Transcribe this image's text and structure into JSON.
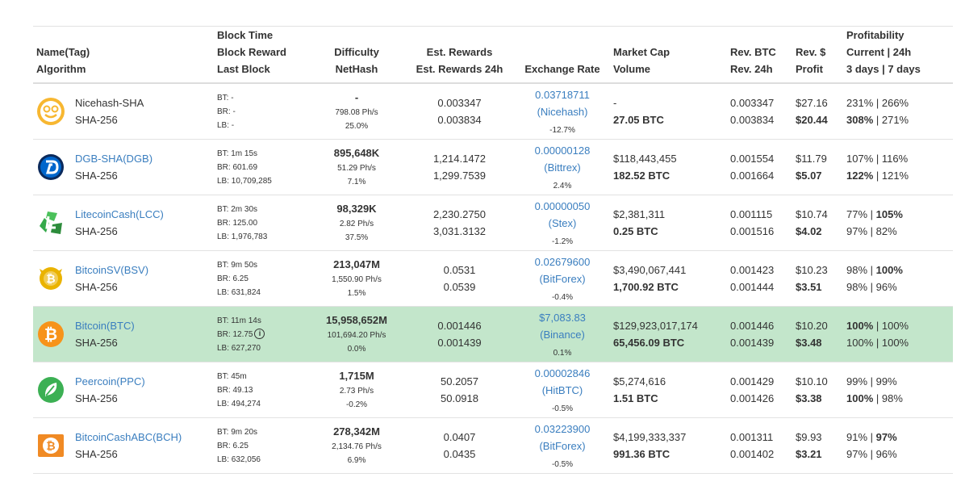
{
  "headers": {
    "name_1": "Name(Tag)",
    "name_2": "Algorithm",
    "block_1": "Block Time",
    "block_2": "Block Reward",
    "block_3": "Last Block",
    "diff_1": "Difficulty",
    "diff_2": "NetHash",
    "rew_1": "Est. Rewards",
    "rew_2": "Est. Rewards 24h",
    "ex_1": "Exchange Rate",
    "mc_1": "Market Cap",
    "mc_2": "Volume",
    "rb_1": "Rev. BTC",
    "rb_2": "Rev. 24h",
    "rd_1": "Rev. $",
    "rd_2": "Profit",
    "pr_1": "Profitability",
    "pr_2": "Current | 24h",
    "pr_3": "3 days | 7 days"
  },
  "rows": [
    {
      "name": "Nicehash-SHA",
      "algo": "SHA-256",
      "logo": "nicehash-icon",
      "logo_color": "#f7b731",
      "bt": "BT: -",
      "br": "BR: -",
      "lb": "LB: -",
      "diff": "-",
      "nethash": "798.08 Ph/s",
      "diff_pct": "25.0%",
      "rew": "0.003347",
      "rew24": "0.003834",
      "rate": "0.03718711",
      "exchange": "(Nicehash)",
      "rate_pct": "-12.7%",
      "mcap": "-",
      "volume": "27.05 BTC",
      "revbtc": "0.003347",
      "rev24": "0.003834",
      "revusd": "$27.16",
      "profit": "$20.44",
      "prof_cur": "231%",
      "prof_24": "266%",
      "prof_3": "308%",
      "prof_7": "271%"
    },
    {
      "name": "DGB-SHA(DGB)",
      "algo": "SHA-256",
      "logo": "digibyte-icon",
      "logo_color": "#0066cc",
      "bt": "BT: 1m 15s",
      "br": "BR: 601.69",
      "lb": "LB: 10,709,285",
      "diff": "895,648K",
      "nethash": "51.29 Ph/s",
      "diff_pct": "7.1%",
      "rew": "1,214.1472",
      "rew24": "1,299.7539",
      "rate": "0.00000128",
      "exchange": "(Bittrex)",
      "rate_pct": "2.4%",
      "mcap": "$118,443,455",
      "volume": "182.52 BTC",
      "revbtc": "0.001554",
      "rev24": "0.001664",
      "revusd": "$11.79",
      "profit": "$5.07",
      "prof_cur": "107%",
      "prof_24": "116%",
      "prof_3": "122%",
      "prof_7": "121%"
    },
    {
      "name": "LitecoinCash(LCC)",
      "algo": "SHA-256",
      "logo": "litecoincash-icon",
      "logo_color": "#34a94a",
      "bt": "BT: 2m 30s",
      "br": "BR: 125.00",
      "lb": "LB: 1,976,783",
      "diff": "98,329K",
      "nethash": "2.82 Ph/s",
      "diff_pct": "37.5%",
      "rew": "2,230.2750",
      "rew24": "3,031.3132",
      "rate": "0.00000050",
      "exchange": "(Stex)",
      "rate_pct": "-1.2%",
      "mcap": "$2,381,311",
      "volume": "0.25 BTC",
      "revbtc": "0.001115",
      "rev24": "0.001516",
      "revusd": "$10.74",
      "profit": "$4.02",
      "prof_cur": "77%",
      "prof_24": "105%",
      "prof_3": "97%",
      "prof_7": "82%"
    },
    {
      "name": "BitcoinSV(BSV)",
      "algo": "SHA-256",
      "logo": "bitcoinsv-icon",
      "logo_color": "#eab300",
      "bt": "BT: 9m 50s",
      "br": "BR: 6.25",
      "lb": "LB: 631,824",
      "diff": "213,047M",
      "nethash": "1,550.90 Ph/s",
      "diff_pct": "1.5%",
      "rew": "0.0531",
      "rew24": "0.0539",
      "rate": "0.02679600",
      "exchange": "(BitForex)",
      "rate_pct": "-0.4%",
      "mcap": "$3,490,067,441",
      "volume": "1,700.92 BTC",
      "revbtc": "0.001423",
      "rev24": "0.001444",
      "revusd": "$10.23",
      "profit": "$3.51",
      "prof_cur": "98%",
      "prof_24": "100%",
      "prof_3": "98%",
      "prof_7": "96%"
    },
    {
      "name": "Bitcoin(BTC)",
      "algo": "SHA-256",
      "logo": "bitcoin-icon",
      "logo_color": "#f7931a",
      "bt": "BT: 11m 14s",
      "br": "BR: 12.75",
      "lb": "LB: 627,270",
      "diff": "15,958,652M",
      "nethash": "101,694.20 Ph/s",
      "diff_pct": "0.0%",
      "rew": "0.001446",
      "rew24": "0.001439",
      "rate": "$7,083.83",
      "exchange": "(Binance)",
      "rate_pct": "0.1%",
      "mcap": "$129,923,017,174",
      "volume": "65,456.09 BTC",
      "revbtc": "0.001446",
      "rev24": "0.001439",
      "revusd": "$10.20",
      "profit": "$3.48",
      "prof_cur": "100%",
      "prof_24": "100%",
      "prof_3": "100%",
      "prof_7": "100%",
      "info_icon": "i"
    },
    {
      "name": "Peercoin(PPC)",
      "algo": "SHA-256",
      "logo": "peercoin-icon",
      "logo_color": "#3cb054",
      "bt": "BT: 45m",
      "br": "BR: 49.13",
      "lb": "LB: 494,274",
      "diff": "1,715M",
      "nethash": "2.73 Ph/s",
      "diff_pct": "-0.2%",
      "rew": "50.2057",
      "rew24": "50.0918",
      "rate": "0.00002846",
      "exchange": "(HitBTC)",
      "rate_pct": "-0.5%",
      "mcap": "$5,274,616",
      "volume": "1.51 BTC",
      "revbtc": "0.001429",
      "rev24": "0.001426",
      "revusd": "$10.10",
      "profit": "$3.38",
      "prof_cur": "99%",
      "prof_24": "99%",
      "prof_3": "100%",
      "prof_7": "98%"
    },
    {
      "name": "BitcoinCashABC(BCH)",
      "algo": "SHA-256",
      "logo": "bitcoincash-icon",
      "logo_color": "#f08a24",
      "bt": "BT: 9m 20s",
      "br": "BR: 6.25",
      "lb": "LB: 632,056",
      "diff": "278,342M",
      "nethash": "2,134.76 Ph/s",
      "diff_pct": "6.9%",
      "rew": "0.0407",
      "rew24": "0.0435",
      "rate": "0.03223900",
      "exchange": "(BitForex)",
      "rate_pct": "-0.5%",
      "mcap": "$4,199,333,337",
      "volume": "991.36 BTC",
      "revbtc": "0.001311",
      "rev24": "0.001402",
      "revusd": "$9.93",
      "profit": "$3.21",
      "prof_cur": "91%",
      "prof_24": "97%",
      "prof_3": "97%",
      "prof_7": "96%"
    }
  ]
}
